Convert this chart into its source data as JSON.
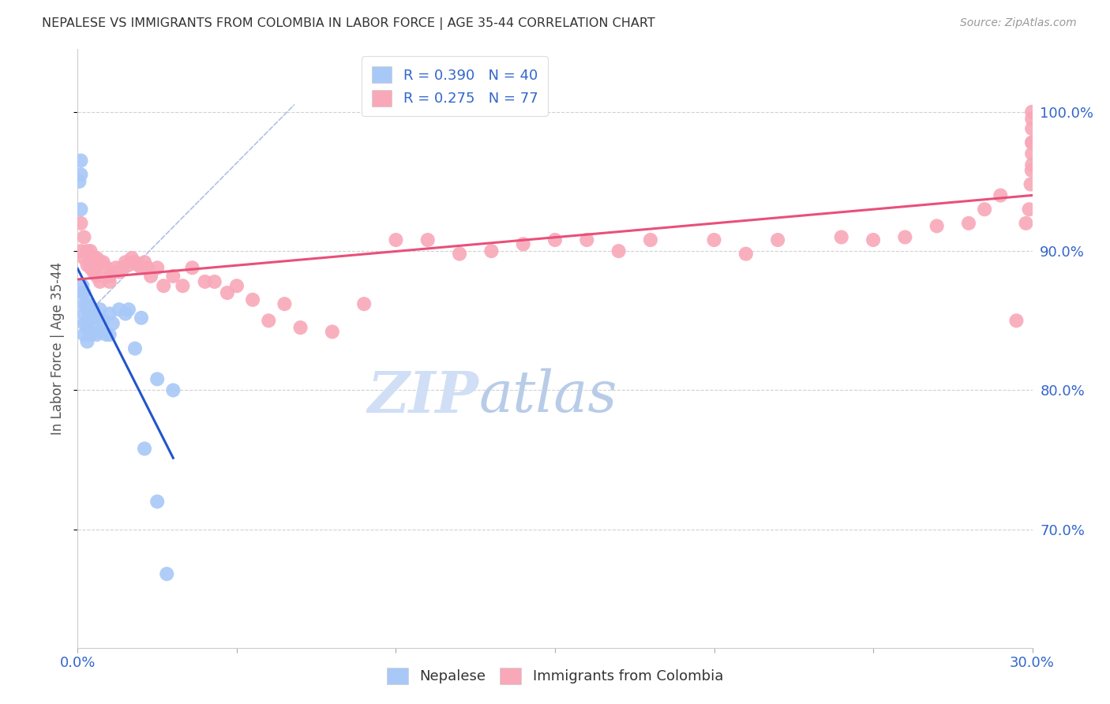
{
  "title": "NEPALESE VS IMMIGRANTS FROM COLOMBIA IN LABOR FORCE | AGE 35-44 CORRELATION CHART",
  "source": "Source: ZipAtlas.com",
  "ylabel": "In Labor Force | Age 35-44",
  "xmin": 0.0,
  "xmax": 0.3,
  "ymin": 0.615,
  "ymax": 1.045,
  "yticks": [
    0.7,
    0.8,
    0.9,
    1.0
  ],
  "ytick_labels": [
    "70.0%",
    "80.0%",
    "90.0%",
    "100.0%"
  ],
  "xticks": [
    0.0,
    0.05,
    0.1,
    0.15,
    0.2,
    0.25,
    0.3
  ],
  "xtick_labels": [
    "0.0%",
    "",
    "",
    "",
    "",
    "",
    "30.0%"
  ],
  "nepalese_R": 0.39,
  "nepalese_N": 40,
  "colombia_R": 0.275,
  "colombia_N": 77,
  "nepalese_color": "#a8c8f8",
  "colombia_color": "#f8a8b8",
  "nepalese_line_color": "#2255cc",
  "colombia_line_color": "#e8507a",
  "dashed_line_color": "#aabbdd",
  "legend_text_color": "#3366cc",
  "watermark_color": "#c8d8f0",
  "nepalese_x": [
    0.0005,
    0.001,
    0.001,
    0.001,
    0.0015,
    0.0015,
    0.002,
    0.002,
    0.002,
    0.002,
    0.002,
    0.003,
    0.003,
    0.003,
    0.003,
    0.003,
    0.004,
    0.004,
    0.004,
    0.005,
    0.005,
    0.006,
    0.006,
    0.007,
    0.007,
    0.008,
    0.009,
    0.01,
    0.01,
    0.011,
    0.013,
    0.015,
    0.016,
    0.018,
    0.02,
    0.021,
    0.025,
    0.03,
    0.025,
    0.028
  ],
  "nepalese_y": [
    0.95,
    0.965,
    0.955,
    0.93,
    0.875,
    0.87,
    0.87,
    0.862,
    0.855,
    0.848,
    0.84,
    0.862,
    0.858,
    0.85,
    0.845,
    0.835,
    0.86,
    0.852,
    0.84,
    0.858,
    0.845,
    0.852,
    0.84,
    0.858,
    0.842,
    0.85,
    0.84,
    0.855,
    0.84,
    0.848,
    0.858,
    0.855,
    0.858,
    0.83,
    0.852,
    0.758,
    0.808,
    0.8,
    0.72,
    0.668
  ],
  "colombia_x": [
    0.001,
    0.001,
    0.002,
    0.002,
    0.003,
    0.003,
    0.004,
    0.004,
    0.005,
    0.005,
    0.006,
    0.006,
    0.007,
    0.007,
    0.008,
    0.009,
    0.01,
    0.01,
    0.011,
    0.012,
    0.013,
    0.014,
    0.015,
    0.016,
    0.017,
    0.018,
    0.019,
    0.02,
    0.021,
    0.022,
    0.023,
    0.025,
    0.027,
    0.03,
    0.033,
    0.036,
    0.04,
    0.043,
    0.047,
    0.05,
    0.055,
    0.06,
    0.065,
    0.07,
    0.08,
    0.09,
    0.1,
    0.11,
    0.12,
    0.13,
    0.14,
    0.15,
    0.16,
    0.17,
    0.18,
    0.2,
    0.21,
    0.22,
    0.24,
    0.25,
    0.26,
    0.27,
    0.28,
    0.285,
    0.29,
    0.295,
    0.298,
    0.299,
    0.2995,
    0.2998,
    0.2999,
    0.2999,
    0.2999,
    0.2999,
    0.2999,
    0.2999,
    0.2999
  ],
  "colombia_y": [
    0.92,
    0.9,
    0.91,
    0.895,
    0.9,
    0.89,
    0.9,
    0.888,
    0.895,
    0.885,
    0.895,
    0.882,
    0.892,
    0.878,
    0.892,
    0.888,
    0.882,
    0.878,
    0.885,
    0.888,
    0.885,
    0.888,
    0.892,
    0.89,
    0.895,
    0.892,
    0.89,
    0.888,
    0.892,
    0.888,
    0.882,
    0.888,
    0.875,
    0.882,
    0.875,
    0.888,
    0.878,
    0.878,
    0.87,
    0.875,
    0.865,
    0.85,
    0.862,
    0.845,
    0.842,
    0.862,
    0.908,
    0.908,
    0.898,
    0.9,
    0.905,
    0.908,
    0.908,
    0.9,
    0.908,
    0.908,
    0.898,
    0.908,
    0.91,
    0.908,
    0.91,
    0.918,
    0.92,
    0.93,
    0.94,
    0.85,
    0.92,
    0.93,
    0.948,
    0.958,
    0.97,
    0.978,
    0.988,
    0.995,
    1.0,
    0.978,
    0.962
  ]
}
